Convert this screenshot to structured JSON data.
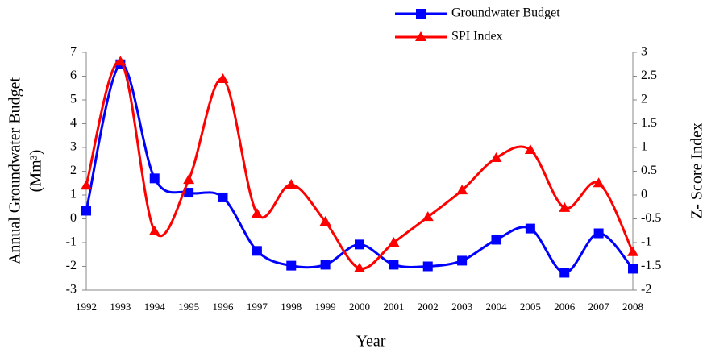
{
  "chart_data": {
    "type": "line",
    "categories": [
      "1992",
      "1993",
      "1994",
      "1995",
      "1996",
      "1997",
      "1998",
      "1999",
      "2000",
      "2001",
      "2002",
      "2003",
      "2004",
      "2005",
      "2006",
      "2007",
      "2008"
    ],
    "series": [
      {
        "name": "Groundwater Budget",
        "color": "#0000ff",
        "marker": "square",
        "values": [
          0.34,
          6.5,
          1.7,
          1.1,
          0.9,
          -1.35,
          -1.97,
          -1.93,
          -1.08,
          -1.93,
          -2.0,
          -1.76,
          -0.88,
          -0.41,
          -2.27,
          -0.61,
          -2.1
        ]
      },
      {
        "name": "SPI Index",
        "color": "#ff0000",
        "marker": "triangle",
        "axis": "y2",
        "values": [
          0.2,
          2.81,
          -0.76,
          0.32,
          2.44,
          -0.39,
          0.22,
          -0.56,
          -1.54,
          -1.0,
          -0.46,
          0.1,
          0.78,
          0.95,
          -0.27,
          0.25,
          -1.2
        ]
      }
    ],
    "xlabel": "Year",
    "ylabel": [
      "Annual Groundwater Budget",
      "(Mm³)"
    ],
    "y2label": "Z- Score Index",
    "ylim": [
      -3,
      7
    ],
    "yticks": [
      -3,
      -2,
      -1,
      0,
      1,
      2,
      3,
      4,
      5,
      6,
      7
    ],
    "y2lim": [
      -2,
      3
    ],
    "y2ticks": [
      -2,
      -1.5,
      -1,
      -0.5,
      0,
      0.5,
      1,
      1.5,
      2,
      2.5,
      3
    ],
    "smooth": true,
    "grid": false,
    "legend": "top-right"
  }
}
